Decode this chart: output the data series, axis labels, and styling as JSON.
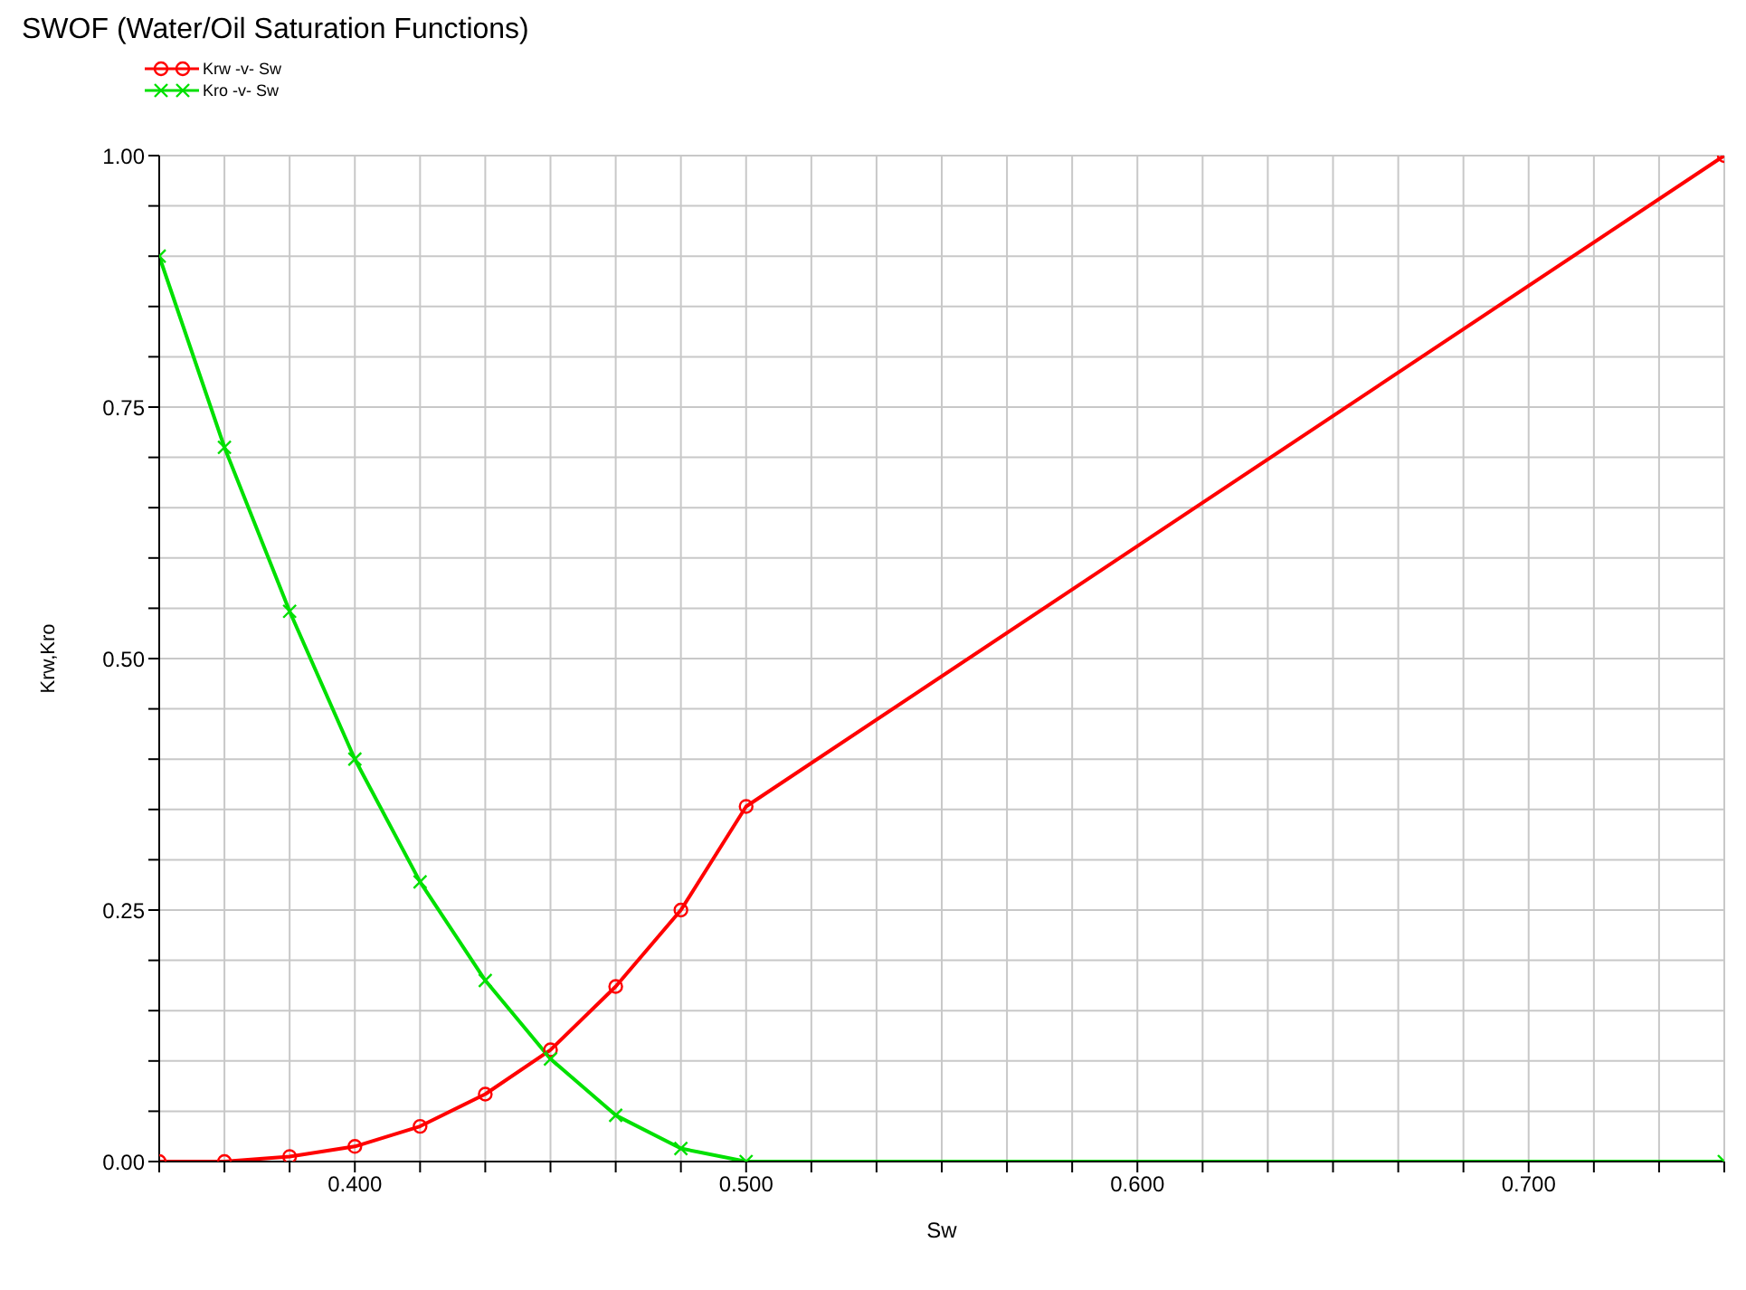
{
  "chart_data": {
    "type": "line",
    "title": "SWOF (Water/Oil Saturation Functions)",
    "xlabel": "Sw",
    "ylabel": "Krw,Kro",
    "xlim": [
      0.35,
      0.75
    ],
    "ylim": [
      0,
      1
    ],
    "xticks": [
      {
        "value": 0.35,
        "label": null
      },
      {
        "value": 0.36667,
        "label": null
      },
      {
        "value": 0.38333,
        "label": null
      },
      {
        "value": 0.4,
        "label": "0.400"
      },
      {
        "value": 0.41667,
        "label": null
      },
      {
        "value": 0.43333,
        "label": null
      },
      {
        "value": 0.45,
        "label": null
      },
      {
        "value": 0.46667,
        "label": null
      },
      {
        "value": 0.48333,
        "label": null
      },
      {
        "value": 0.5,
        "label": "0.500"
      },
      {
        "value": 0.51667,
        "label": null
      },
      {
        "value": 0.53333,
        "label": null
      },
      {
        "value": 0.55,
        "label": null
      },
      {
        "value": 0.56667,
        "label": null
      },
      {
        "value": 0.58333,
        "label": null
      },
      {
        "value": 0.6,
        "label": "0.600"
      },
      {
        "value": 0.61667,
        "label": null
      },
      {
        "value": 0.63333,
        "label": null
      },
      {
        "value": 0.65,
        "label": null
      },
      {
        "value": 0.66667,
        "label": null
      },
      {
        "value": 0.68333,
        "label": null
      },
      {
        "value": 0.7,
        "label": "0.700"
      },
      {
        "value": 0.71667,
        "label": null
      },
      {
        "value": 0.73333,
        "label": null
      },
      {
        "value": 0.75,
        "label": null
      }
    ],
    "yticks": [
      {
        "value": 0,
        "label": "0.00"
      },
      {
        "value": 0.05,
        "label": null
      },
      {
        "value": 0.1,
        "label": null
      },
      {
        "value": 0.15,
        "label": null
      },
      {
        "value": 0.2,
        "label": null
      },
      {
        "value": 0.25,
        "label": "0.25"
      },
      {
        "value": 0.3,
        "label": null
      },
      {
        "value": 0.35,
        "label": null
      },
      {
        "value": 0.4,
        "label": null
      },
      {
        "value": 0.45,
        "label": null
      },
      {
        "value": 0.5,
        "label": "0.50"
      },
      {
        "value": 0.55,
        "label": null
      },
      {
        "value": 0.6,
        "label": null
      },
      {
        "value": 0.65,
        "label": null
      },
      {
        "value": 0.7,
        "label": null
      },
      {
        "value": 0.75,
        "label": "0.75"
      },
      {
        "value": 0.8,
        "label": null
      },
      {
        "value": 0.85,
        "label": null
      },
      {
        "value": 0.9,
        "label": null
      },
      {
        "value": 0.95,
        "label": null
      },
      {
        "value": 1,
        "label": "1.00"
      }
    ],
    "grid": true,
    "legend": "top left",
    "series": [
      {
        "name": "Krw -v- Sw",
        "color": "#ff0000",
        "marker": "circle",
        "x": [
          0.35,
          0.36667,
          0.38333,
          0.4,
          0.41667,
          0.43333,
          0.45,
          0.46667,
          0.48333,
          0.5,
          0.75
        ],
        "values": [
          0,
          0,
          0.005,
          0.015,
          0.035,
          0.067,
          0.111,
          0.174,
          0.25,
          0.353,
          1
        ]
      },
      {
        "name": "Kro -v- Sw",
        "color": "#00e000",
        "marker": "cross",
        "x": [
          0.35,
          0.36667,
          0.38333,
          0.4,
          0.41667,
          0.43333,
          0.45,
          0.46667,
          0.48333,
          0.5,
          0.75
        ],
        "values": [
          0.9,
          0.71,
          0.547,
          0.4,
          0.278,
          0.18,
          0.102,
          0.046,
          0.013,
          0,
          0
        ]
      }
    ]
  }
}
